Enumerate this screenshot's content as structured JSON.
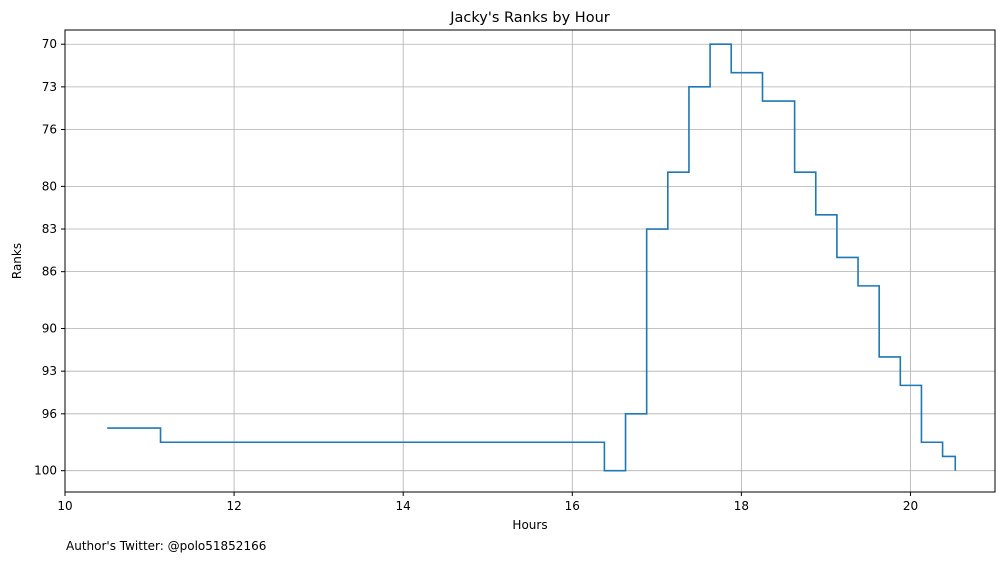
{
  "chart_data": {
    "type": "line",
    "drawstyle": "steps-post",
    "title": "Jacky's Ranks by Hour",
    "xlabel": "Hours",
    "ylabel": "Ranks",
    "xlim": [
      10,
      21
    ],
    "ylim": [
      101.5,
      69
    ],
    "y_inverted": true,
    "grid": true,
    "line_color": "#1f77b4",
    "xticks": [
      10,
      12,
      14,
      16,
      18,
      20
    ],
    "yticks": [
      70,
      73,
      76,
      80,
      83,
      86,
      90,
      93,
      96,
      100
    ],
    "x": [
      10.5,
      11.13,
      13.75,
      16.38,
      16.63,
      16.88,
      17.13,
      17.38,
      17.63,
      17.88,
      18.25,
      18.63,
      18.88,
      19.13,
      19.38,
      19.63,
      19.88,
      20.13,
      20.38,
      20.53
    ],
    "y": [
      97,
      98,
      98,
      100,
      96,
      83,
      79,
      73,
      70,
      72,
      74,
      79,
      82,
      85,
      87,
      92,
      94,
      98,
      99,
      100
    ]
  },
  "footer": {
    "author": "Author's Twitter: @polo51852166"
  }
}
